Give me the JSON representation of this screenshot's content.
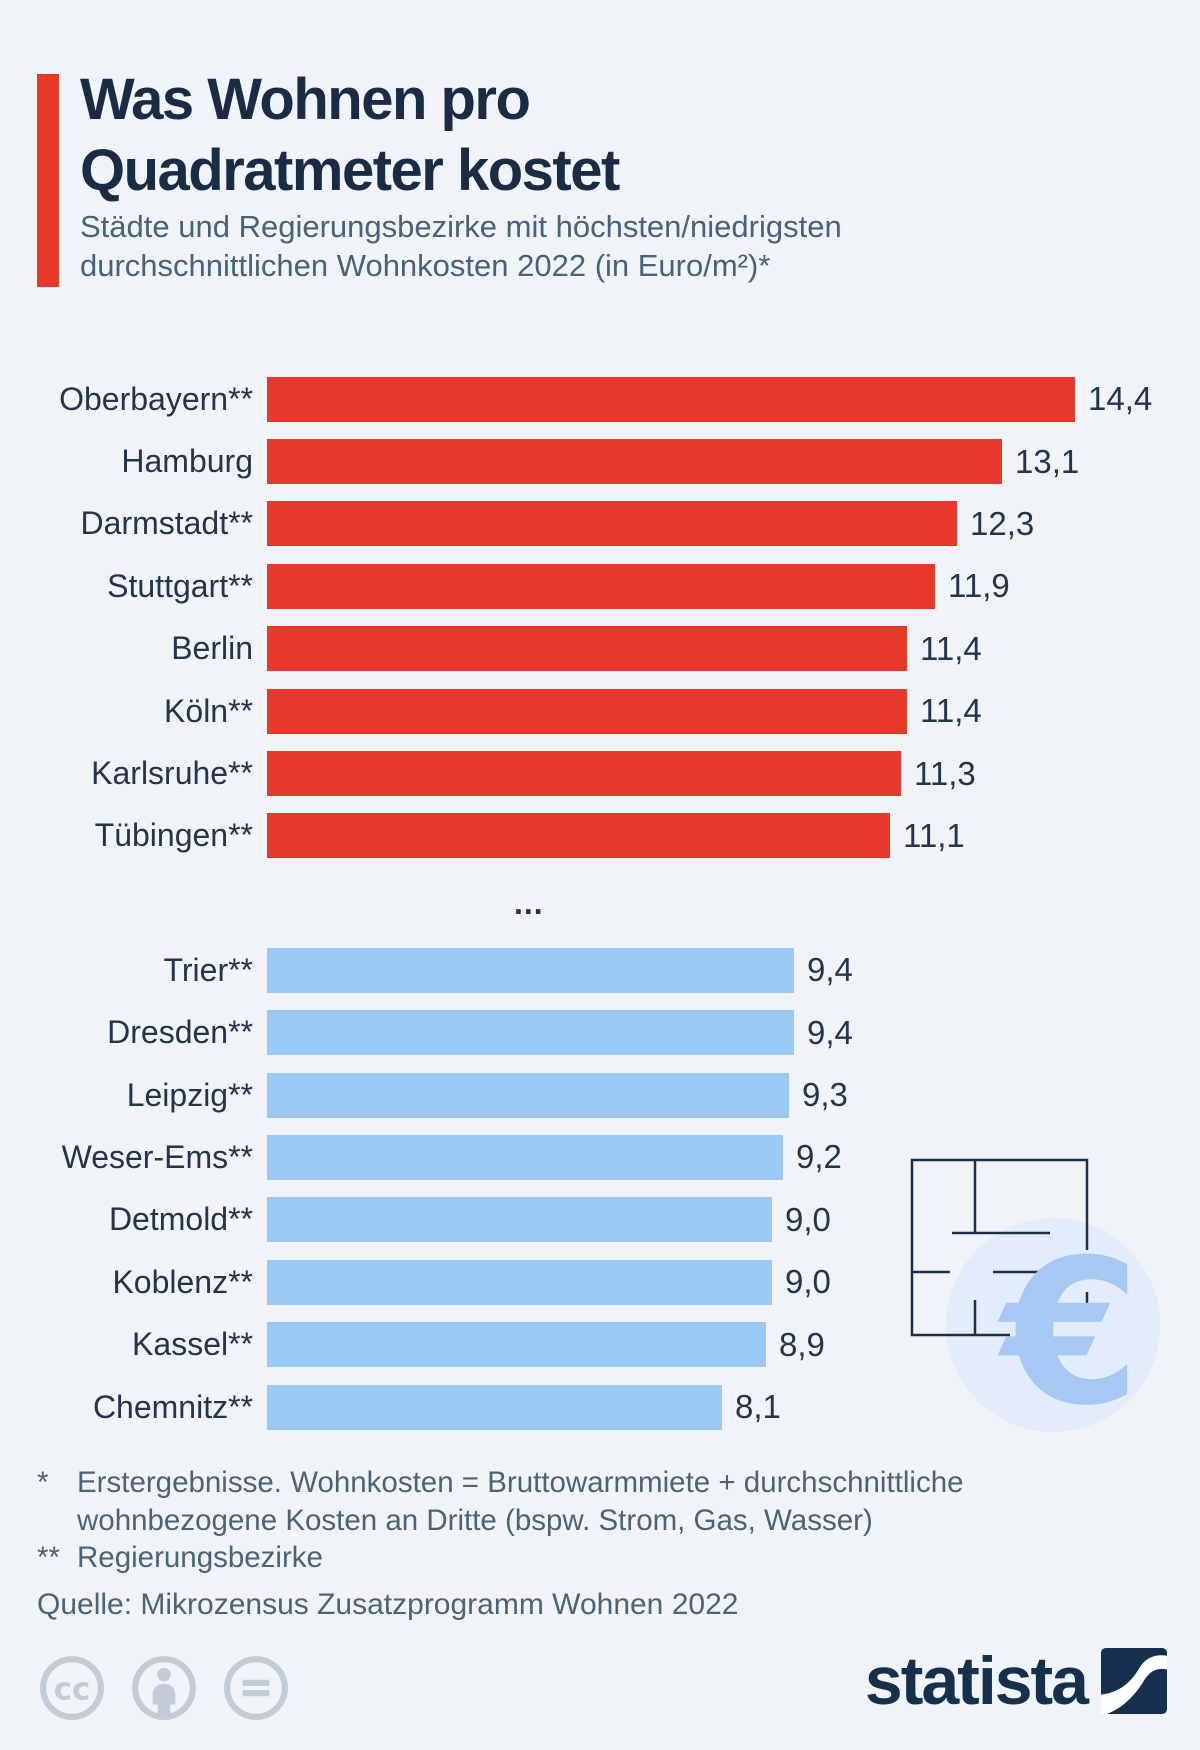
{
  "header": {
    "title_line1": "Was Wohnen pro",
    "title_line2": "Quadratmeter kostet",
    "subtitle": "Städte und Regierungsbezirke mit höchsten/niedrigsten durchschnittlichen Wohnkosten 2022 (in Euro/m²)*"
  },
  "chart_data": {
    "type": "bar",
    "orientation": "horizontal",
    "title": "Was Wohnen pro Quadratmeter kostet",
    "unit": "Euro/m²",
    "year": "2022",
    "xmax": 14.4,
    "separator": "...",
    "legend": false,
    "grid": false,
    "groups": [
      {
        "name": "highest",
        "color": "#e7392b",
        "items": [
          {
            "label": "Oberbayern**",
            "value": 14.4,
            "value_label": "14,4"
          },
          {
            "label": "Hamburg",
            "value": 13.1,
            "value_label": "13,1"
          },
          {
            "label": "Darmstadt**",
            "value": 12.3,
            "value_label": "12,3"
          },
          {
            "label": "Stuttgart**",
            "value": 11.9,
            "value_label": "11,9"
          },
          {
            "label": "Berlin",
            "value": 11.4,
            "value_label": "11,4"
          },
          {
            "label": "Köln**",
            "value": 11.4,
            "value_label": "11,4"
          },
          {
            "label": "Karlsruhe**",
            "value": 11.3,
            "value_label": "11,3"
          },
          {
            "label": "Tübingen**",
            "value": 11.1,
            "value_label": "11,1"
          }
        ]
      },
      {
        "name": "lowest",
        "color": "#9ac9f6",
        "items": [
          {
            "label": "Trier**",
            "value": 9.4,
            "value_label": "9,4"
          },
          {
            "label": "Dresden**",
            "value": 9.4,
            "value_label": "9,4"
          },
          {
            "label": "Leipzig**",
            "value": 9.3,
            "value_label": "9,3"
          },
          {
            "label": "Weser-Ems**",
            "value": 9.2,
            "value_label": "9,2"
          },
          {
            "label": "Detmold**",
            "value": 9.0,
            "value_label": "9,0"
          },
          {
            "label": "Koblenz**",
            "value": 9.0,
            "value_label": "9,0"
          },
          {
            "label": "Kassel**",
            "value": 8.9,
            "value_label": "8,9"
          },
          {
            "label": "Chemnitz**",
            "value": 8.1,
            "value_label": "8,1"
          }
        ]
      }
    ]
  },
  "footnotes": [
    {
      "marker": "*",
      "lines": [
        "Erstergebnisse. Wohnkosten = Bruttowarmmiete + durchschnittliche",
        "wohnbezogene Kosten an Dritte (bspw. Strom, Gas, Wasser)"
      ]
    },
    {
      "marker": "**",
      "lines": [
        "Regierungsbezirke"
      ]
    }
  ],
  "source": {
    "text": "Quelle: Mikrozensus Zusatzprogramm Wohnen 2022"
  },
  "branding": {
    "wordmark": "statista",
    "license_icons": [
      "cc",
      "by",
      "nd"
    ]
  },
  "illustration": {
    "euro_symbol": "€"
  },
  "colors": {
    "background": "#f0f4f8",
    "accent_red": "#e7392b",
    "bar_blue": "#9ac9f6",
    "dark_navy": "#1a2b45",
    "slate_text": "#4b6378",
    "license_gray": "#c2ccd6",
    "euro_blue": "#a6c9f4",
    "euro_circle": "#e2ecfb"
  }
}
